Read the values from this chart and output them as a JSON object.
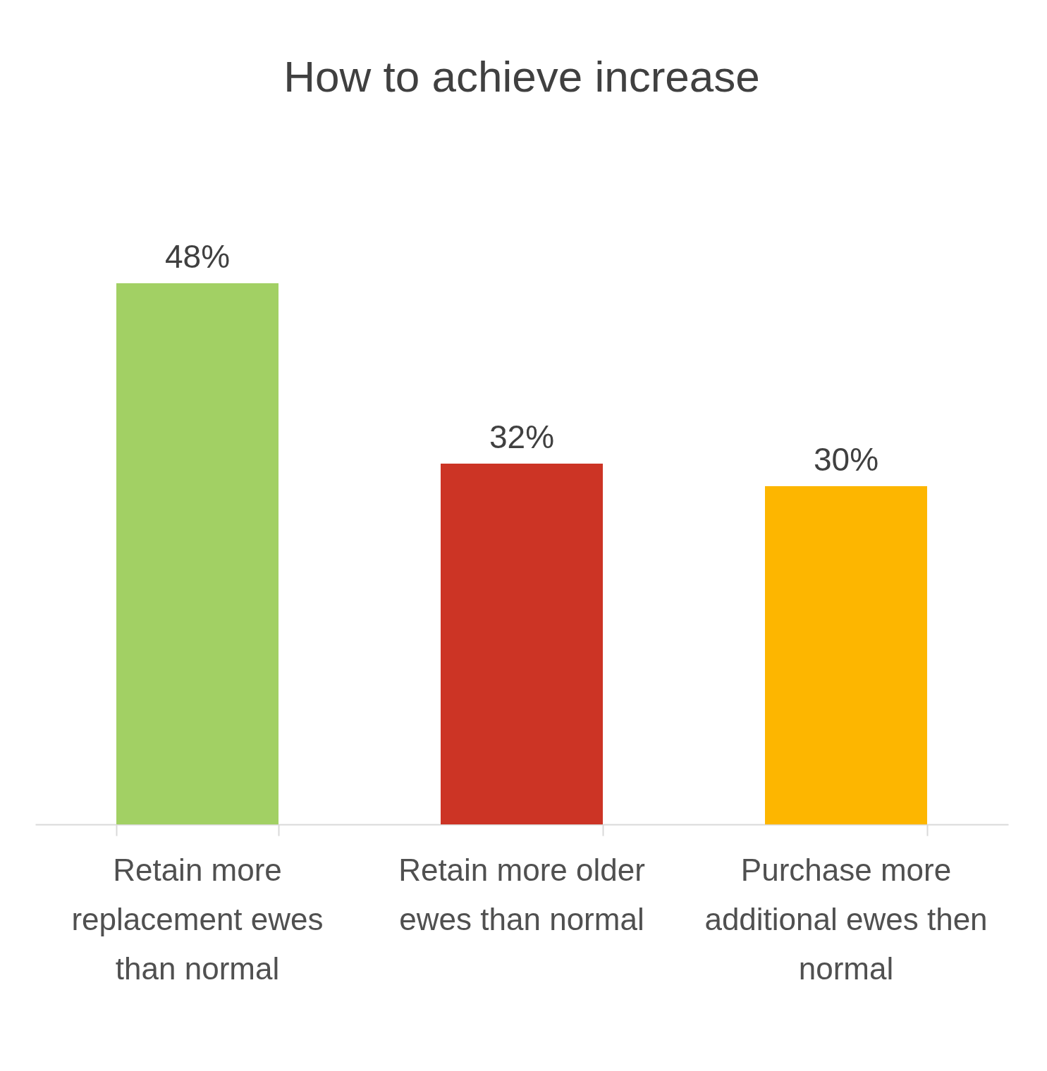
{
  "chart_data": {
    "type": "bar",
    "title": "How to achieve increase",
    "categories": [
      "Retain more replacement ewes than normal",
      "Retain more older ewes than normal",
      "Purchase more additional ewes then normal"
    ],
    "values": [
      48,
      32,
      30
    ],
    "value_labels": [
      "48%",
      "32%",
      "30%"
    ],
    "colors": [
      "#a2d064",
      "#cc3425",
      "#fdb600"
    ],
    "grid": false,
    "tick_labels": "x"
  }
}
